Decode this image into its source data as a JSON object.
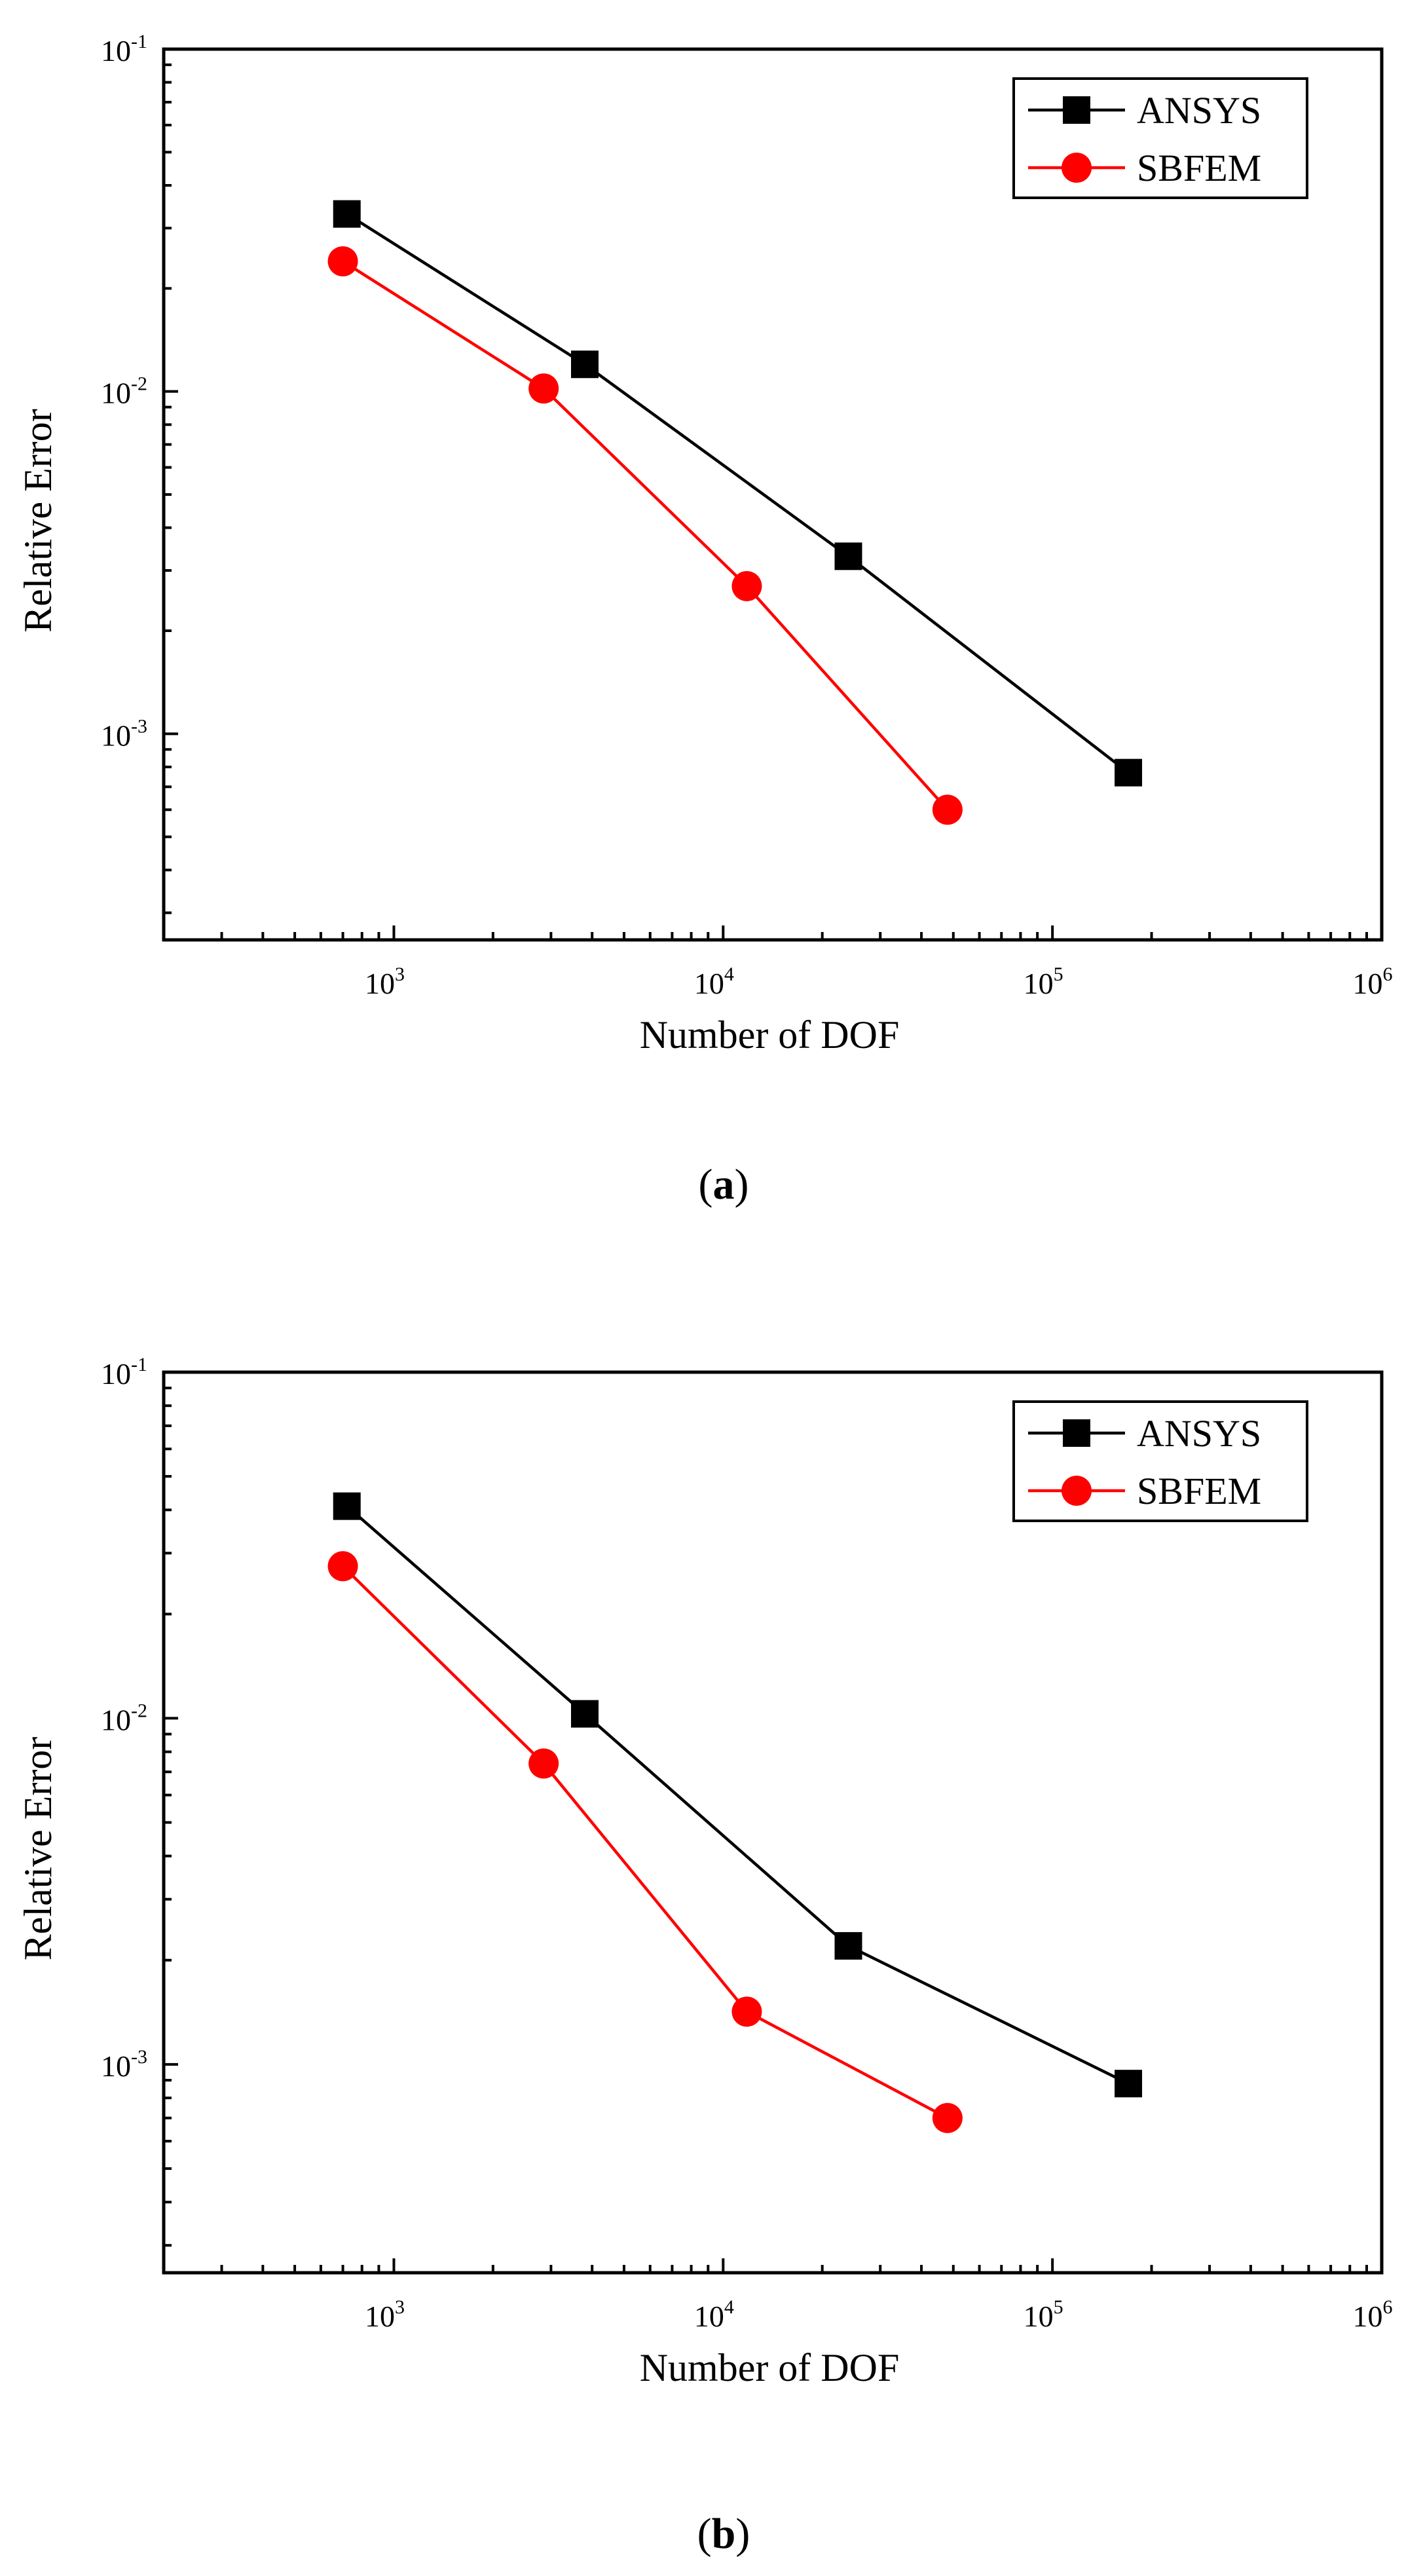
{
  "chart_data": [
    {
      "panel": "(a)",
      "panel_letter": "a",
      "type": "line",
      "xscale": "log",
      "yscale": "log",
      "xlim": [
        200,
        1000000
      ],
      "ylim": [
        0.00025,
        0.1
      ],
      "xlabel": "Number of DOF",
      "ylabel": "Relative Error",
      "x_major_ticks": [
        {
          "value": 1000,
          "base": "10",
          "exp": "3"
        },
        {
          "value": 10000,
          "base": "10",
          "exp": "4"
        },
        {
          "value": 100000,
          "base": "10",
          "exp": "5"
        },
        {
          "value": 1000000,
          "base": "10",
          "exp": "6"
        }
      ],
      "y_major_ticks": [
        {
          "value": 0.001,
          "base": "10",
          "exp": "-3"
        },
        {
          "value": 0.01,
          "base": "10",
          "exp": "-2"
        },
        {
          "value": 0.1,
          "base": "10",
          "exp": "-1"
        }
      ],
      "legend_position": "top-right",
      "series": [
        {
          "name": "ANSYS",
          "color": "#000000",
          "marker": "square",
          "x": [
            720,
            3800,
            24000,
            170000
          ],
          "y": [
            0.033,
            0.012,
            0.0033,
            0.00077
          ]
        },
        {
          "name": "SBFEM",
          "color": "#ff0000",
          "marker": "circle",
          "x": [
            700,
            2850,
            11800,
            48000
          ],
          "y": [
            0.024,
            0.0102,
            0.0027,
            0.0006
          ]
        }
      ]
    },
    {
      "panel": "(b)",
      "panel_letter": "b",
      "type": "line",
      "xscale": "log",
      "yscale": "log",
      "xlim": [
        200,
        1000000
      ],
      "ylim": [
        0.00025,
        0.1
      ],
      "xlabel": "Number of DOF",
      "ylabel": "Relative Error",
      "x_major_ticks": [
        {
          "value": 1000,
          "base": "10",
          "exp": "3"
        },
        {
          "value": 10000,
          "base": "10",
          "exp": "4"
        },
        {
          "value": 100000,
          "base": "10",
          "exp": "5"
        },
        {
          "value": 1000000,
          "base": "10",
          "exp": "6"
        }
      ],
      "y_major_ticks": [
        {
          "value": 0.001,
          "base": "10",
          "exp": "-3"
        },
        {
          "value": 0.01,
          "base": "10",
          "exp": "-2"
        },
        {
          "value": 0.1,
          "base": "10",
          "exp": "-1"
        }
      ],
      "legend_position": "top-right",
      "series": [
        {
          "name": "ANSYS",
          "color": "#000000",
          "marker": "square",
          "x": [
            720,
            3800,
            24000,
            170000
          ],
          "y": [
            0.041,
            0.0103,
            0.0022,
            0.00088
          ]
        },
        {
          "name": "SBFEM",
          "color": "#ff0000",
          "marker": "circle",
          "x": [
            700,
            2850,
            11800,
            48000
          ],
          "y": [
            0.0275,
            0.0074,
            0.00142,
            0.0007
          ]
        }
      ]
    }
  ]
}
